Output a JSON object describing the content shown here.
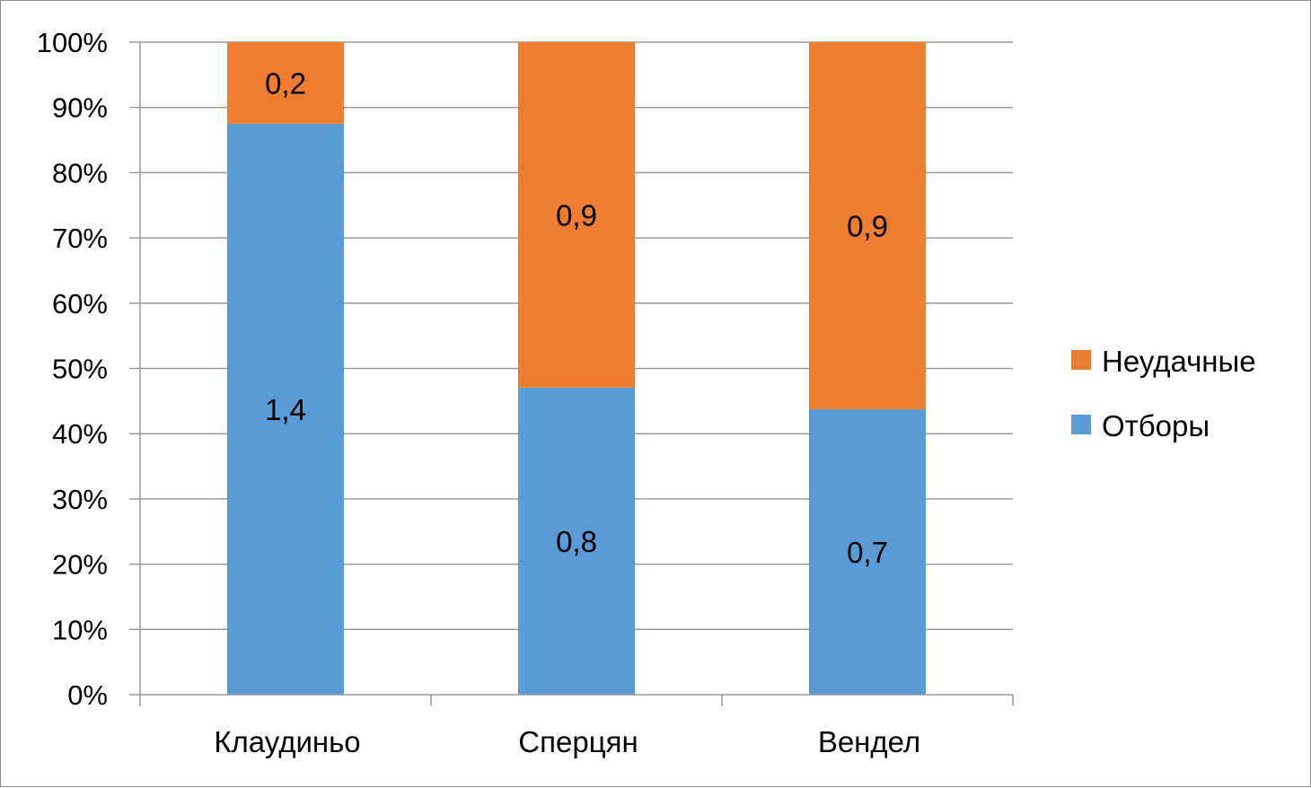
{
  "chart_data": {
    "type": "bar",
    "stacked": "percent",
    "categories": [
      "Клаудиньо",
      "Сперцян",
      "Вендел"
    ],
    "series": [
      {
        "name": "Отборы",
        "values": [
          1.4,
          0.8,
          0.7
        ],
        "labels": [
          "1,4",
          "0,8",
          "0,7"
        ],
        "color": "#5b9bd5"
      },
      {
        "name": "Неудачные",
        "values": [
          0.2,
          0.9,
          0.9
        ],
        "labels": [
          "0,2",
          "0,9",
          "0,9"
        ],
        "color": "#ed7d31"
      }
    ],
    "ylim": [
      0,
      100
    ],
    "yticks": [
      0,
      10,
      20,
      30,
      40,
      50,
      60,
      70,
      80,
      90,
      100
    ],
    "ytick_labels": [
      "0%",
      "10%",
      "20%",
      "30%",
      "40%",
      "50%",
      "60%",
      "70%",
      "80%",
      "90%",
      "100%"
    ],
    "grid": true,
    "legend_position": "right",
    "legend_order": [
      "Неудачные",
      "Отборы"
    ]
  }
}
